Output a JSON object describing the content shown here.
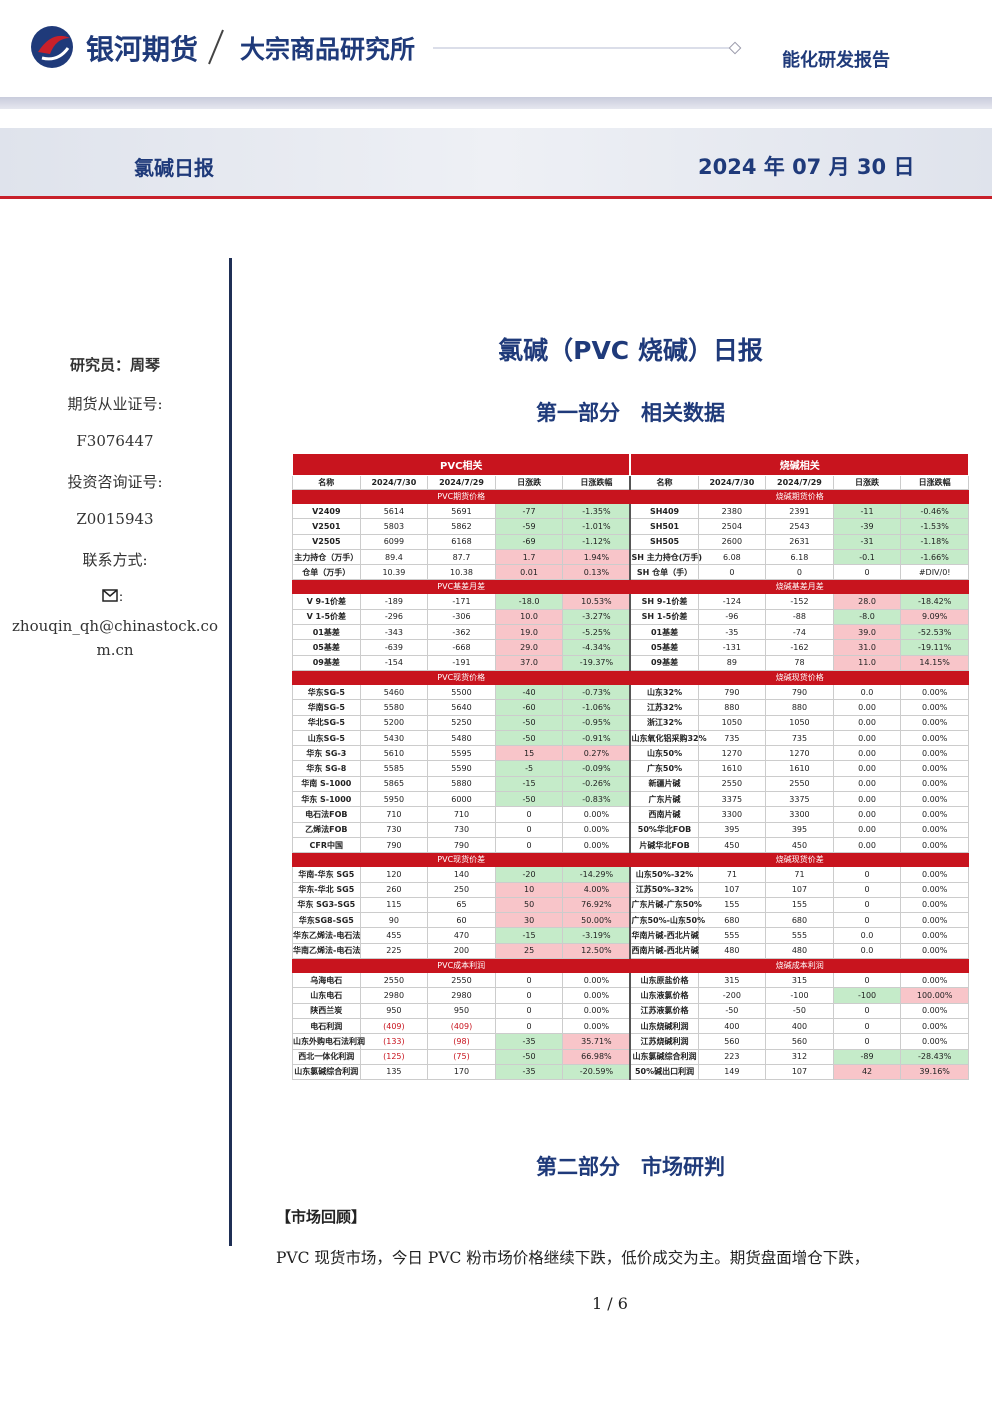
{
  "header": {
    "brand": "银河期货",
    "institute": "大宗商品研究所",
    "report_type": "能化研发报告"
  },
  "banner": {
    "title": "氯碱日报",
    "date": "2024 年 07 月 30 日"
  },
  "sidebar": {
    "researcher": "研究员：周琴",
    "license_label": "期货从业证号:",
    "license": "F3076447",
    "consult_label": "投资咨询证号:",
    "consult": "Z0015943",
    "contact_label": "联系方式:",
    "email": "zhouqin_qh@chinastock.com.cn"
  },
  "main": {
    "title": "氯碱（PVC 烧碱）日报",
    "section1": "第一部分　相关数据",
    "section2": "第二部分　市场研判",
    "subheading": "【市场回顾】",
    "paragraph": "PVC 现货市场，今日 PVC 粉市场价格继续下跌，低价成交为主。期货盘面增仓下跌，",
    "page": "1 / 6"
  },
  "table": {
    "left_title": "PVC相关",
    "right_title": "烧碱相关",
    "columns": [
      "名称",
      "2024/7/30",
      "2024/7/29",
      "日涨跌",
      "日涨跌幅"
    ],
    "sections": [
      {
        "left_name": "PVC期货价格",
        "right_name": "烧碱期货价格",
        "rows": [
          [
            "V2409",
            "5614",
            "5691",
            "-77",
            "-1.35%",
            "SH409",
            "2380",
            "2391",
            "-11",
            "-0.46%"
          ],
          [
            "V2501",
            "5803",
            "5862",
            "-59",
            "-1.01%",
            "SH501",
            "2504",
            "2543",
            "-39",
            "-1.53%"
          ],
          [
            "V2505",
            "6099",
            "6168",
            "-69",
            "-1.12%",
            "SH505",
            "2600",
            "2631",
            "-31",
            "-1.18%"
          ],
          [
            "主力持仓（万手）",
            "89.4",
            "87.7",
            "1.7",
            "1.94%",
            "SH 主力持仓(万手)",
            "6.08",
            "6.18",
            "-0.1",
            "-1.66%"
          ],
          [
            "仓单（万手）",
            "10.39",
            "10.38",
            "0.01",
            "0.13%",
            "SH 仓单（手）",
            "0",
            "0",
            "0",
            "#DIV/0!"
          ]
        ]
      },
      {
        "left_name": "PVC基差月差",
        "right_name": "烧碱基差月差",
        "rows": [
          [
            "V 9-1价差",
            "-189",
            "-171",
            "-18.0",
            "10.53%",
            "SH 9-1价差",
            "-124",
            "-152",
            "28.0",
            "-18.42%"
          ],
          [
            "V 1-5价差",
            "-296",
            "-306",
            "10.0",
            "-3.27%",
            "SH 1-5价差",
            "-96",
            "-88",
            "-8.0",
            "9.09%"
          ],
          [
            "01基差",
            "-343",
            "-362",
            "19.0",
            "-5.25%",
            "01基差",
            "-35",
            "-74",
            "39.0",
            "-52.53%"
          ],
          [
            "05基差",
            "-639",
            "-668",
            "29.0",
            "-4.34%",
            "05基差",
            "-131",
            "-162",
            "31.0",
            "-19.11%"
          ],
          [
            "09基差",
            "-154",
            "-191",
            "37.0",
            "-19.37%",
            "09基差",
            "89",
            "78",
            "11.0",
            "14.15%"
          ]
        ]
      },
      {
        "left_name": "PVC现货价格",
        "right_name": "烧碱现货价格",
        "rows": [
          [
            "华东SG-5",
            "5460",
            "5500",
            "-40",
            "-0.73%",
            "山东32%",
            "790",
            "790",
            "0.0",
            "0.00%"
          ],
          [
            "华南SG-5",
            "5580",
            "5640",
            "-60",
            "-1.06%",
            "江苏32%",
            "880",
            "880",
            "0.00",
            "0.00%"
          ],
          [
            "华北SG-5",
            "5200",
            "5250",
            "-50",
            "-0.95%",
            "浙江32%",
            "1050",
            "1050",
            "0.00",
            "0.00%"
          ],
          [
            "山东SG-5",
            "5430",
            "5480",
            "-50",
            "-0.91%",
            "山东氧化铝采购32%",
            "735",
            "735",
            "0.00",
            "0.00%"
          ],
          [
            "华东 SG-3",
            "5610",
            "5595",
            "15",
            "0.27%",
            "山东50%",
            "1270",
            "1270",
            "0.00",
            "0.00%"
          ],
          [
            "华东 SG-8",
            "5585",
            "5590",
            "-5",
            "-0.09%",
            "广东50%",
            "1610",
            "1610",
            "0.00",
            "0.00%"
          ],
          [
            "华南 S-1000",
            "5865",
            "5880",
            "-15",
            "-0.26%",
            "新疆片碱",
            "2550",
            "2550",
            "0.00",
            "0.00%"
          ],
          [
            "华东 S-1000",
            "5950",
            "6000",
            "-50",
            "-0.83%",
            "广东片碱",
            "3375",
            "3375",
            "0.00",
            "0.00%"
          ],
          [
            "电石法FOB",
            "710",
            "710",
            "0",
            "0.00%",
            "西南片碱",
            "3300",
            "3300",
            "0.00",
            "0.00%"
          ],
          [
            "乙烯法FOB",
            "730",
            "730",
            "0",
            "0.00%",
            "50%华北FOB",
            "395",
            "395",
            "0.00",
            "0.00%"
          ],
          [
            "CFR中国",
            "790",
            "790",
            "0",
            "0.00%",
            "片碱华北FOB",
            "450",
            "450",
            "0.00",
            "0.00%"
          ]
        ]
      },
      {
        "left_name": "PVC现货价差",
        "right_name": "烧碱现货价差",
        "rows": [
          [
            "华南-华东 SG5",
            "120",
            "140",
            "-20",
            "-14.29%",
            "山东50%-32%",
            "71",
            "71",
            "0",
            "0.00%"
          ],
          [
            "华东-华北 SG5",
            "260",
            "250",
            "10",
            "4.00%",
            "江苏50%-32%",
            "107",
            "107",
            "0",
            "0.00%"
          ],
          [
            "华东 SG3-SG5",
            "115",
            "65",
            "50",
            "76.92%",
            "广东片碱-广东50%",
            "155",
            "155",
            "0",
            "0.00%"
          ],
          [
            "华东SG8-SG5",
            "90",
            "60",
            "30",
            "50.00%",
            "广东50%-山东50%",
            "680",
            "680",
            "0",
            "0.00%"
          ],
          [
            "华东乙烯法-电石法",
            "455",
            "470",
            "-15",
            "-3.19%",
            "华南片碱-西北片碱",
            "555",
            "555",
            "0.0",
            "0.00%"
          ],
          [
            "华南乙烯法-电石法",
            "225",
            "200",
            "25",
            "12.50%",
            "西南片碱-西北片碱",
            "480",
            "480",
            "0.0",
            "0.00%"
          ]
        ]
      },
      {
        "left_name": "PVC成本利润",
        "right_name": "烧碱成本利润",
        "rows": [
          [
            "乌海电石",
            "2550",
            "2550",
            "0",
            "0.00%",
            "山东原盐价格",
            "315",
            "315",
            "0",
            "0.00%"
          ],
          [
            "山东电石",
            "2980",
            "2980",
            "0",
            "0.00%",
            "山东液氯价格",
            "-200",
            "-100",
            "-100",
            "100.00%"
          ],
          [
            "陕西兰炭",
            "950",
            "950",
            "0",
            "0.00%",
            "江苏液氯价格",
            "-50",
            "-50",
            "0",
            "0.00%"
          ],
          [
            "电石利润",
            "(409)",
            "(409)",
            "0",
            "0.00%",
            "山东烧碱利润",
            "400",
            "400",
            "0",
            "0.00%"
          ],
          [
            "山东外购电石法利润",
            "(133)",
            "(98)",
            "-35",
            "35.71%",
            "江苏烧碱利润",
            "560",
            "560",
            "0",
            "0.00%"
          ],
          [
            "西北一体化利润",
            "(125)",
            "(75)",
            "-50",
            "66.98%",
            "山东氯碱综合利润",
            "223",
            "312",
            "-89",
            "-28.43%"
          ],
          [
            "山东氯碱综合利润",
            "135",
            "170",
            "-35",
            "-20.59%",
            "50%碱出口利润",
            "149",
            "107",
            "42",
            "39.16%"
          ]
        ]
      }
    ]
  }
}
